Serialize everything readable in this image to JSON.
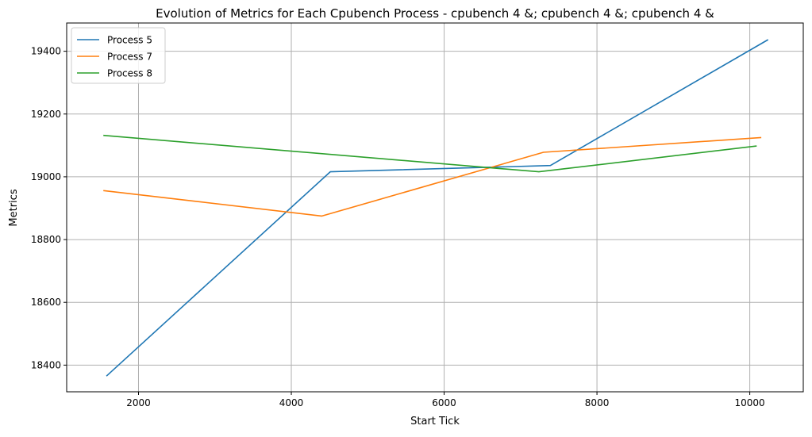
{
  "chart_data": {
    "type": "line",
    "title": "Evolution of Metrics for Each Cpubench Process - cpubench 4 &; cpubench 4 &; cpubench 4 &",
    "xlabel": "Start Tick",
    "ylabel": "Metrics",
    "xlim": [
      1060,
      10700
    ],
    "ylim": [
      18315,
      19490
    ],
    "xticks": [
      2000,
      4000,
      6000,
      8000,
      10000
    ],
    "yticks": [
      18400,
      18600,
      18800,
      19000,
      19200,
      19400
    ],
    "grid": true,
    "legend_position": "top-left",
    "series": [
      {
        "name": "Process 5",
        "color": "#1f77b4",
        "points": [
          [
            1580,
            18365
          ],
          [
            4510,
            19016
          ],
          [
            7390,
            19036
          ],
          [
            10240,
            19437
          ]
        ]
      },
      {
        "name": "Process 7",
        "color": "#ff7f0e",
        "points": [
          [
            1540,
            18956
          ],
          [
            4400,
            18875
          ],
          [
            7300,
            19078
          ],
          [
            10150,
            19125
          ]
        ]
      },
      {
        "name": "Process 8",
        "color": "#2ca02c",
        "points": [
          [
            1540,
            19132
          ],
          [
            7240,
            19016
          ],
          [
            10090,
            19098
          ]
        ]
      }
    ]
  }
}
